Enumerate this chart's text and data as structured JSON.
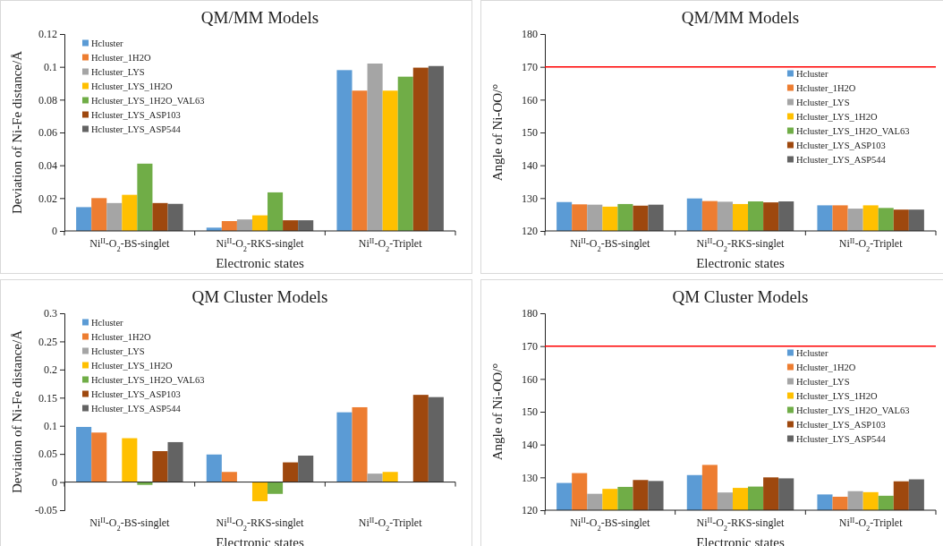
{
  "chart_data": [
    {
      "type": "bar",
      "title": "QM/MM Models",
      "xlabel": "Electronic states",
      "ylabel": "Deviation of Ni-Fe distance/Å",
      "legend": "top left",
      "categories": [
        "Ni$^{II}$-O$_{2}$-BS-singlet",
        "Ni$^{II}$-O$_{2}$-RKS-singlet",
        "Ni$^{II}$-O$_{2}$-Triplet"
      ],
      "ylim": [
        0,
        0.12
      ],
      "yticks": [
        0,
        0.02,
        0.04,
        0.06,
        0.08,
        0.1,
        0.12
      ],
      "series": [
        {
          "name": "Hcluster",
          "color": "#5b9bd5",
          "values": [
            0.0145,
            0.002,
            0.098
          ]
        },
        {
          "name": "Hcluster_1H2O",
          "color": "#ed7d31",
          "values": [
            0.02,
            0.006,
            0.0855
          ]
        },
        {
          "name": "Hcluster_LYS",
          "color": "#a5a5a5",
          "values": [
            0.017,
            0.007,
            0.102
          ]
        },
        {
          "name": "Hcluster_LYS_1H2O",
          "color": "#ffc000",
          "values": [
            0.022,
            0.0095,
            0.0855
          ]
        },
        {
          "name": "Hcluster_LYS_1H2O_VAL63",
          "color": "#70ad47",
          "values": [
            0.041,
            0.0235,
            0.094
          ]
        },
        {
          "name": "Hcluster_LYS_ASP103",
          "color": "#9e480e",
          "values": [
            0.017,
            0.0065,
            0.0995
          ]
        },
        {
          "name": "Hcluster_LYS_ASP544",
          "color": "#636363",
          "values": [
            0.0165,
            0.0065,
            0.1005
          ]
        }
      ]
    },
    {
      "type": "bar",
      "title": "QM/MM Models",
      "xlabel": "Electronic states",
      "ylabel": "Angle of Ni-OO/°",
      "legend": "right",
      "categories": [
        "Ni$^{II}$-O$_{2}$-BS-singlet",
        "Ni$^{II}$-O$_{2}$-RKS-singlet",
        "Ni$^{II}$-O$_{2}$-Triplet"
      ],
      "ylim": [
        120,
        180
      ],
      "yticks": [
        120,
        130,
        140,
        150,
        160,
        170,
        180
      ],
      "ref_lines": [
        {
          "axis": "y",
          "value": 170,
          "color": "#ff0000"
        }
      ],
      "series": [
        {
          "name": "Hcluster",
          "color": "#5b9bd5",
          "values": [
            128.8,
            129.9,
            127.8
          ]
        },
        {
          "name": "Hcluster_1H2O",
          "color": "#ed7d31",
          "values": [
            128.1,
            129.1,
            127.8
          ]
        },
        {
          "name": "Hcluster_LYS",
          "color": "#a5a5a5",
          "values": [
            128.0,
            128.9,
            126.8
          ]
        },
        {
          "name": "Hcluster_LYS_1H2O",
          "color": "#ffc000",
          "values": [
            127.4,
            128.2,
            127.8
          ]
        },
        {
          "name": "Hcluster_LYS_1H2O_VAL63",
          "color": "#70ad47",
          "values": [
            128.2,
            129.0,
            127.0
          ]
        },
        {
          "name": "Hcluster_LYS_ASP103",
          "color": "#9e480e",
          "values": [
            127.7,
            128.7,
            126.5
          ]
        },
        {
          "name": "Hcluster_LYS_ASP544",
          "color": "#636363",
          "values": [
            128.0,
            129.0,
            126.5
          ]
        }
      ]
    },
    {
      "type": "bar",
      "title": "QM Cluster Models",
      "xlabel": "Electronic states",
      "ylabel": "Deviation of Ni-Fe distance/Å",
      "legend": "top left",
      "categories": [
        "Ni$^{II}$-O$_{2}$-BS-singlet",
        "Ni$^{II}$-O$_{2}$-RKS-singlet",
        "Ni$^{II}$-O$_{2}$-Triplet"
      ],
      "ylim": [
        -0.05,
        0.3
      ],
      "yticks": [
        -0.05,
        0,
        0.05,
        0.1,
        0.15,
        0.2,
        0.25,
        0.3
      ],
      "series": [
        {
          "name": "Hcluster",
          "color": "#5b9bd5",
          "values": [
            0.098,
            0.049,
            0.124
          ]
        },
        {
          "name": "Hcluster_1H2O",
          "color": "#ed7d31",
          "values": [
            0.088,
            0.018,
            0.133
          ]
        },
        {
          "name": "Hcluster_LYS",
          "color": "#a5a5a5",
          "values": [
            0,
            0,
            0.015
          ]
        },
        {
          "name": "Hcluster_LYS_1H2O",
          "color": "#ffc000",
          "values": [
            0.078,
            -0.034,
            0.018
          ]
        },
        {
          "name": "Hcluster_LYS_1H2O_VAL63",
          "color": "#70ad47",
          "values": [
            -0.005,
            -0.021,
            0
          ]
        },
        {
          "name": "Hcluster_LYS_ASP103",
          "color": "#9e480e",
          "values": [
            0.055,
            0.035,
            0.155
          ]
        },
        {
          "name": "Hcluster_LYS_ASP544",
          "color": "#636363",
          "values": [
            0.071,
            0.047,
            0.151
          ]
        }
      ]
    },
    {
      "type": "bar",
      "title": "QM Cluster Models",
      "xlabel": "Electronic states",
      "ylabel": "Angle of Ni-OO/°",
      "legend": "right",
      "categories": [
        "Ni$^{II}$-O$_{2}$-BS-singlet",
        "Ni$^{II}$-O$_{2}$-RKS-singlet",
        "Ni$^{II}$-O$_{2}$-Triplet"
      ],
      "ylim": [
        120,
        180
      ],
      "yticks": [
        120,
        130,
        140,
        150,
        160,
        170,
        180
      ],
      "ref_lines": [
        {
          "axis": "y",
          "value": 170,
          "color": "#ff0000"
        }
      ],
      "series": [
        {
          "name": "Hcluster",
          "color": "#5b9bd5",
          "values": [
            128.3,
            130.7,
            124.8
          ]
        },
        {
          "name": "Hcluster_1H2O",
          "color": "#ed7d31",
          "values": [
            131.3,
            133.8,
            124.1
          ]
        },
        {
          "name": "Hcluster_LYS",
          "color": "#a5a5a5",
          "values": [
            125.0,
            125.4,
            125.8
          ]
        },
        {
          "name": "Hcluster_LYS_1H2O",
          "color": "#ffc000",
          "values": [
            126.5,
            126.8,
            125.5
          ]
        },
        {
          "name": "Hcluster_LYS_1H2O_VAL63",
          "color": "#70ad47",
          "values": [
            127.1,
            127.2,
            124.4
          ]
        },
        {
          "name": "Hcluster_LYS_ASP103",
          "color": "#9e480e",
          "values": [
            129.2,
            130.0,
            128.8
          ]
        },
        {
          "name": "Hcluster_LYS_ASP544",
          "color": "#636363",
          "values": [
            128.9,
            129.7,
            129.4
          ]
        }
      ]
    }
  ]
}
